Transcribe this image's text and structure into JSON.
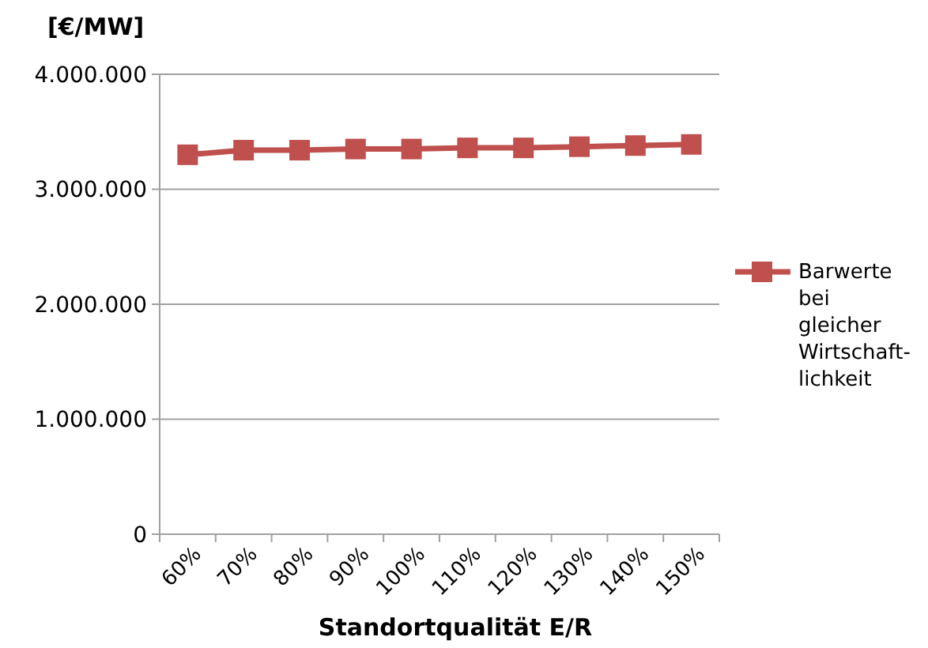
{
  "chart_data": {
    "type": "line",
    "ylabel": "[€/MW]",
    "xlabel": "Standortqualität E/R",
    "categories": [
      "60%",
      "70%",
      "80%",
      "90%",
      "100%",
      "110%",
      "120%",
      "130%",
      "140%",
      "150%"
    ],
    "series": [
      {
        "name": "Barwerte bei gleicher Wirtschaft-lichkeit",
        "color": "#c0504d",
        "values": [
          3300000,
          3340000,
          3340000,
          3350000,
          3350000,
          3360000,
          3360000,
          3370000,
          3380000,
          3390000
        ]
      }
    ],
    "ylim": [
      0,
      4000000
    ],
    "yticks": [
      {
        "value": 0,
        "label": "0"
      },
      {
        "value": 1000000,
        "label": "1.000.000"
      },
      {
        "value": 2000000,
        "label": "2.000.000"
      },
      {
        "value": 3000000,
        "label": "3.000.000"
      },
      {
        "value": 4000000,
        "label": "4.000.000"
      }
    ],
    "grid": "y",
    "legend": "right",
    "marker": "square"
  }
}
